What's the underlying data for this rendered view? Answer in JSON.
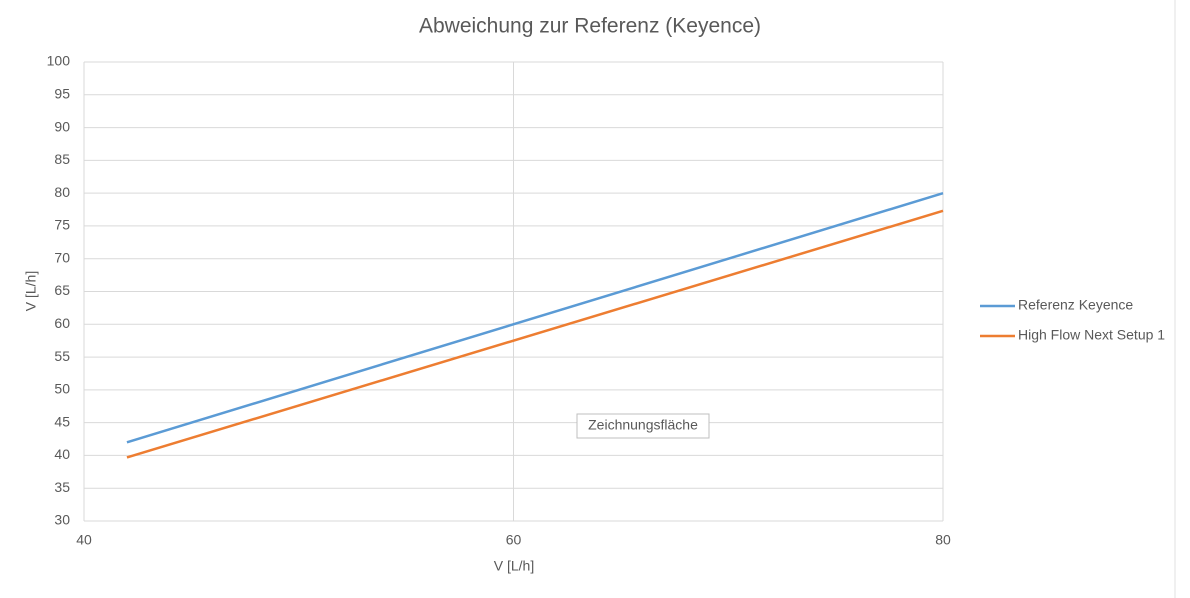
{
  "chart_data": {
    "type": "line",
    "title": "Abweichung zur Referenz (Keyence)",
    "xlabel": "V [L/h]",
    "ylabel": "V [L/h]",
    "annotation": "Zeichnungsfläche",
    "x": [
      42,
      80
    ],
    "series": [
      {
        "name": "Referenz Keyence",
        "color": "#5b9bd5",
        "values": [
          42,
          80
        ]
      },
      {
        "name": "High Flow Next Setup 1",
        "color": "#ed7d31",
        "values": [
          39.7,
          77.3
        ]
      }
    ],
    "xlim": [
      40,
      80
    ],
    "xticks": [
      40,
      60,
      80
    ],
    "ylim": [
      30,
      100
    ],
    "yticks": [
      30,
      35,
      40,
      45,
      50,
      55,
      60,
      65,
      70,
      75,
      80,
      85,
      90,
      95,
      100
    ],
    "grid": true,
    "legend": "right"
  }
}
